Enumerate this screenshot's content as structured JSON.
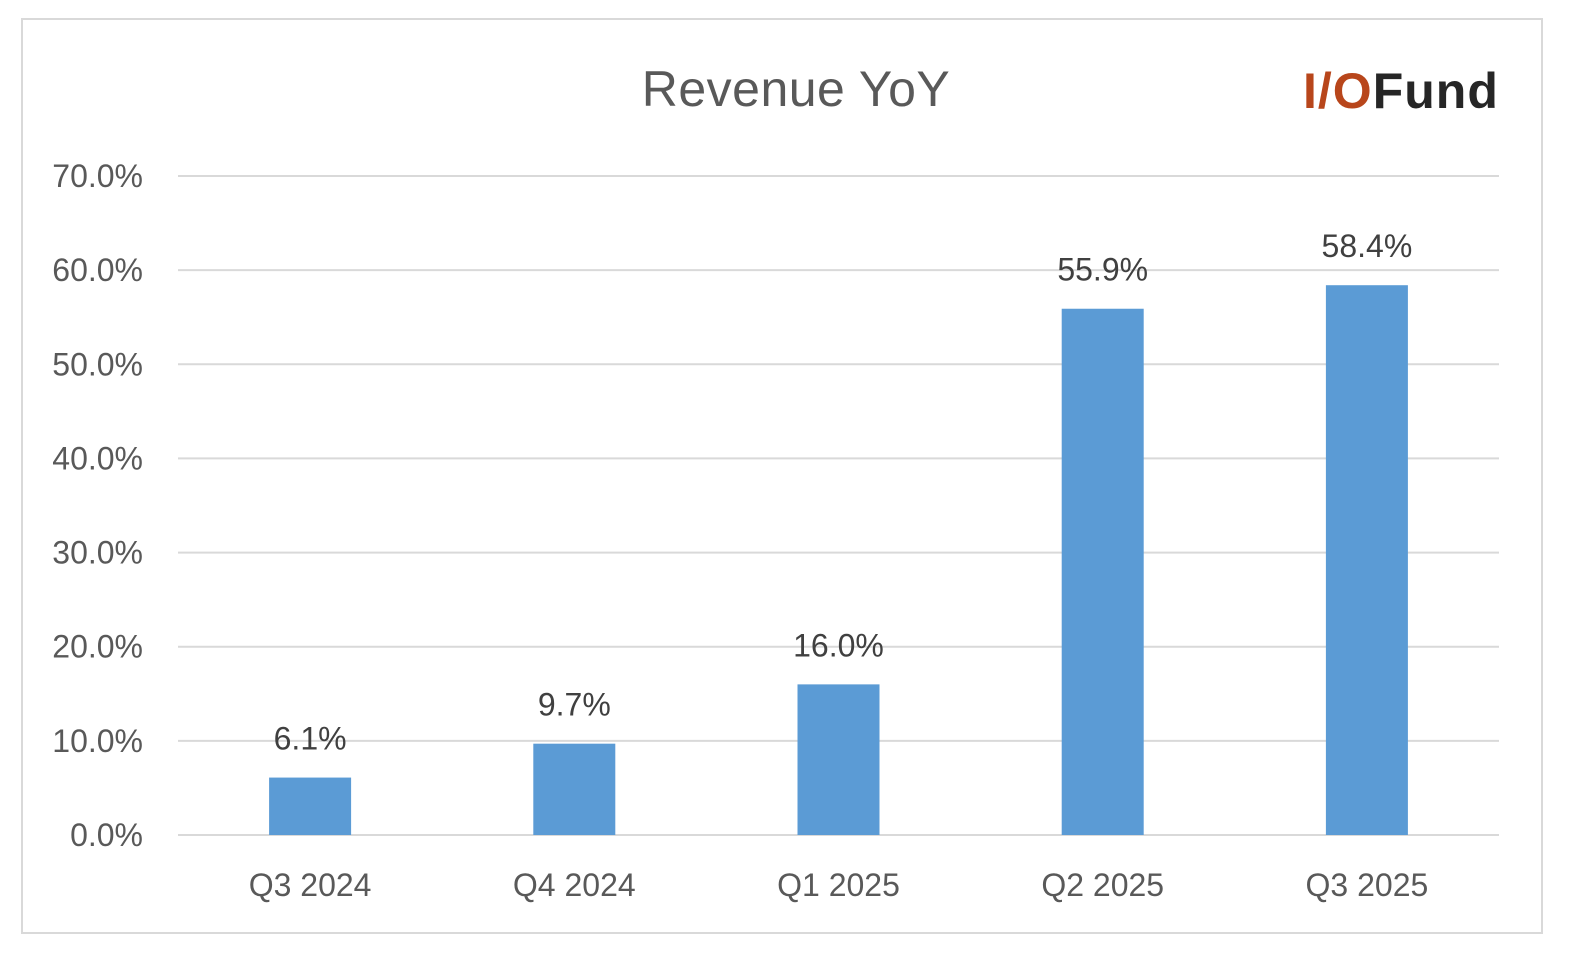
{
  "chart_data": {
    "type": "bar",
    "title": "Revenue YoY",
    "categories": [
      "Q3 2024",
      "Q4 2024",
      "Q1 2025",
      "Q2 2025",
      "Q3 2025"
    ],
    "values": [
      6.1,
      9.7,
      16.0,
      55.9,
      58.4
    ],
    "data_labels": [
      "6.1%",
      "9.7%",
      "16.0%",
      "55.9%",
      "58.4%"
    ],
    "y_ticks": [
      0,
      10,
      20,
      30,
      40,
      50,
      60,
      70
    ],
    "y_tick_labels": [
      "0.0%",
      "10.0%",
      "20.0%",
      "30.0%",
      "40.0%",
      "50.0%",
      "60.0%",
      "70.0%"
    ],
    "ylim": [
      0,
      70
    ],
    "grid": true,
    "bar_color": "#5b9bd5",
    "grid_color": "#d9d9d9",
    "text_color": "#595959"
  },
  "logo": {
    "accent_text": "I/O",
    "rest_text": "Fund",
    "accent_color": "#b8461b",
    "text_color": "#262626"
  }
}
